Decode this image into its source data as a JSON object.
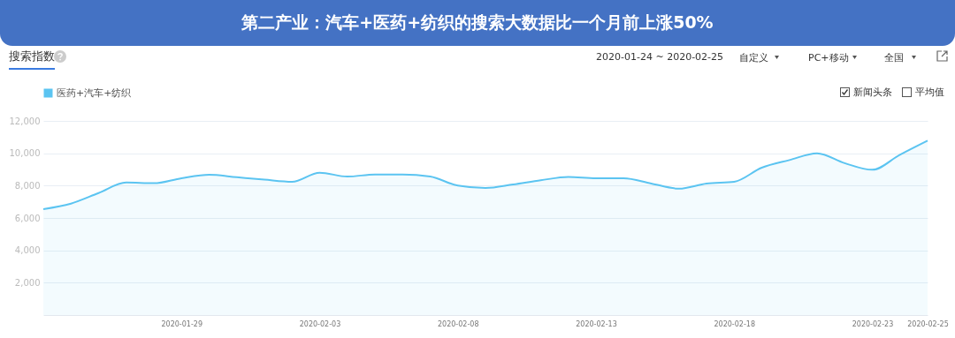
{
  "chart_data": {
    "type": "area",
    "title": "第二产业：汽车+医药+纺织的搜索大数据比一个月前上涨50%",
    "annotations": [
      "搜索指数",
      "2020-01-24 ~ 2020-02-25",
      "自定义",
      "PC+移动",
      "全国",
      "新闻头条",
      "平均值"
    ],
    "x": [
      "2020-01-24",
      "2020-01-25",
      "2020-01-26",
      "2020-01-27",
      "2020-01-28",
      "2020-01-29",
      "2020-01-30",
      "2020-01-31",
      "2020-02-01",
      "2020-02-02",
      "2020-02-03",
      "2020-02-04",
      "2020-02-05",
      "2020-02-06",
      "2020-02-07",
      "2020-02-08",
      "2020-02-09",
      "2020-02-10",
      "2020-02-11",
      "2020-02-12",
      "2020-02-13",
      "2020-02-14",
      "2020-02-15",
      "2020-02-16",
      "2020-02-17",
      "2020-02-18",
      "2020-02-19",
      "2020-02-20",
      "2020-02-21",
      "2020-02-22",
      "2020-02-23",
      "2020-02-24",
      "2020-02-25"
    ],
    "series": [
      {
        "name": "医药+汽车+纺织",
        "color": "#5bc4f1",
        "values": [
          6550,
          6890,
          7540,
          8190,
          8150,
          8460,
          8670,
          8520,
          8370,
          8240,
          8800,
          8560,
          8690,
          8690,
          8560,
          8000,
          7850,
          8070,
          8330,
          8540,
          8450,
          8450,
          8130,
          7810,
          8130,
          8240,
          9110,
          9580,
          10000,
          9390,
          8980,
          9910,
          10780
        ]
      }
    ],
    "xlim": [
      "2020-01-24",
      "2020-02-25"
    ],
    "xticks": [
      "2020-01-29",
      "2020-02-03",
      "2020-02-08",
      "2020-02-13",
      "2020-02-18",
      "2020-02-23",
      "2020-02-25"
    ],
    "ylim": [
      0,
      12000
    ],
    "yticks": [
      {
        "value": 2000,
        "label": "2,000"
      },
      {
        "value": 4000,
        "label": "4,000"
      },
      {
        "value": 6000,
        "label": "6,000"
      },
      {
        "value": 8000,
        "label": "8,000"
      },
      {
        "value": 10000,
        "label": "10,000"
      },
      {
        "value": 12000,
        "label": "12,000"
      }
    ],
    "grid": "y",
    "legend": "top left",
    "marker": "none"
  }
}
